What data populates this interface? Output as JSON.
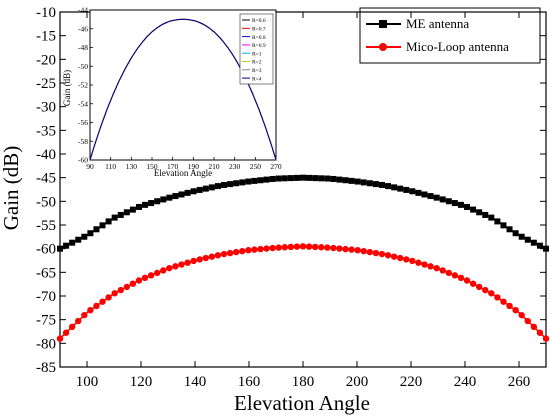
{
  "chart_data": [
    {
      "type": "line",
      "title": "",
      "xlabel": "Elevation Angle",
      "ylabel": "Gain (dB)",
      "xlim": [
        90,
        270
      ],
      "ylim": [
        -85,
        -10
      ],
      "xticks": [
        100,
        120,
        140,
        160,
        180,
        200,
        220,
        240,
        260
      ],
      "yticks": [
        -10,
        -15,
        -20,
        -25,
        -30,
        -35,
        -40,
        -45,
        -50,
        -55,
        -60,
        -65,
        -70,
        -75,
        -80,
        -85
      ],
      "grid": false,
      "legend_position": "top-right",
      "series": [
        {
          "name": "ME antenna",
          "color": "#000000",
          "marker": "square",
          "x": [
            90,
            100,
            110,
            120,
            130,
            140,
            150,
            160,
            170,
            180,
            190,
            200,
            210,
            220,
            230,
            240,
            250,
            260,
            270
          ],
          "y": [
            -60,
            -57.2,
            -53.5,
            -51,
            -49.3,
            -47.8,
            -46.6,
            -45.8,
            -45.2,
            -45,
            -45.2,
            -45.8,
            -46.6,
            -47.8,
            -49.3,
            -51,
            -53.5,
            -57.2,
            -60
          ]
        },
        {
          "name": "Mico-Loop antenna",
          "color": "#ff0000",
          "marker": "circle",
          "x": [
            90,
            100,
            110,
            120,
            130,
            140,
            150,
            160,
            170,
            180,
            190,
            200,
            210,
            220,
            230,
            240,
            250,
            260,
            270
          ],
          "y": [
            -79,
            -73.5,
            -69.5,
            -66.5,
            -64.2,
            -62.5,
            -61.2,
            -60.3,
            -59.8,
            -59.5,
            -59.8,
            -60.3,
            -61.2,
            -62.5,
            -64.2,
            -66.5,
            -69.5,
            -73.5,
            -79
          ]
        }
      ]
    },
    {
      "type": "line",
      "title": "",
      "xlabel": "Elevation Angle",
      "ylabel": "Gain (dB)",
      "xlim": [
        90,
        270
      ],
      "ylim": [
        -60,
        -44
      ],
      "xticks": [
        90,
        110,
        130,
        150,
        170,
        190,
        210,
        230,
        250,
        270
      ],
      "yticks": [
        -44,
        -46,
        -48,
        -50,
        -52,
        -54,
        -56,
        -58,
        -60
      ],
      "grid": false,
      "legend_position": "top-right",
      "series": [
        {
          "name": "R=0.6",
          "color": "#000000",
          "x": [
            90,
            180,
            270
          ],
          "y": [
            -60,
            -45,
            -60
          ]
        },
        {
          "name": "R=0.7",
          "color": "#ff0000",
          "x": [
            90,
            180,
            270
          ],
          "y": [
            -60,
            -45,
            -60
          ]
        },
        {
          "name": "R=0.8",
          "color": "#0000ff",
          "x": [
            90,
            180,
            270
          ],
          "y": [
            -60,
            -45,
            -60
          ]
        },
        {
          "name": "R=0.9",
          "color": "#ff00ff",
          "x": [
            90,
            180,
            270
          ],
          "y": [
            -60,
            -45,
            -60
          ]
        },
        {
          "name": "R=1",
          "color": "#00aaff",
          "x": [
            90,
            180,
            270
          ],
          "y": [
            -60,
            -45,
            -60
          ]
        },
        {
          "name": "R=2",
          "color": "#cccc00",
          "x": [
            90,
            180,
            270
          ],
          "y": [
            -60,
            -45,
            -60
          ]
        },
        {
          "name": "R=3",
          "color": "#888888",
          "x": [
            90,
            180,
            270
          ],
          "y": [
            -60,
            -45,
            -60
          ]
        },
        {
          "name": "R=4",
          "color": "#000080",
          "x": [
            90,
            180,
            270
          ],
          "y": [
            -60,
            -45,
            -60
          ]
        }
      ]
    }
  ]
}
